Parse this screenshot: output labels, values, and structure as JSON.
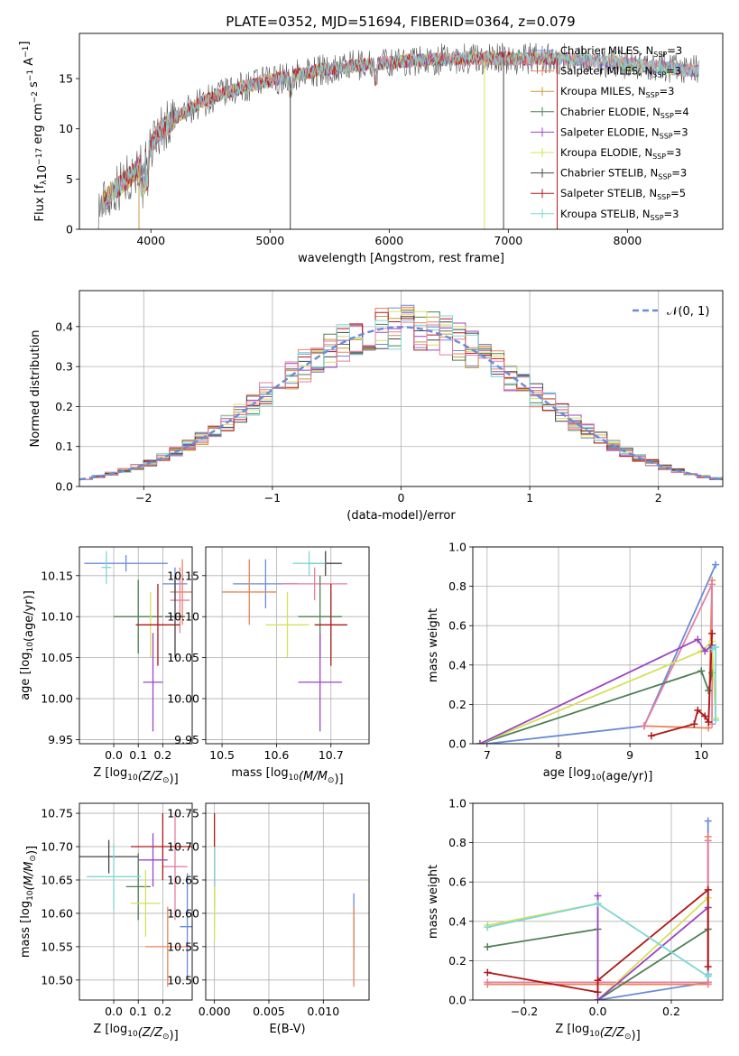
{
  "title": "PLATE=0352, MJD=51694, FIBERID=0364, z=0.079",
  "colors": {
    "c0": "#6a8bd8",
    "c1": "#e8845a",
    "c2": "#c99a3c",
    "c3": "#4f7f56",
    "c4": "#9b45c2",
    "c5": "#d6e05a",
    "c6": "#444444",
    "c7": "#b01818",
    "c8": "#7fd6d6",
    "c9": "#e57fa0"
  },
  "chart_data": [
    {
      "id": "spectrum",
      "type": "line",
      "xlabel": "wavelength [Angstrom, rest frame]",
      "ylabel": "Flux [f_λ10^-17 erg cm^-2 s^-1 A^-1]",
      "xlim": [
        3400,
        8800
      ],
      "ylim": [
        0,
        19.5
      ],
      "xticks": [
        4000,
        5000,
        6000,
        7000,
        8000
      ],
      "yticks": [
        0,
        5,
        10,
        15
      ],
      "grid": false,
      "legend_position": "top-right",
      "legend": [
        {
          "label": "Chabrier MILES, N",
          "sub": "SSP",
          "tail": "=3",
          "color": "c0"
        },
        {
          "label": "Salpeter MILES, N",
          "sub": "SSP",
          "tail": "=3",
          "color": "c1"
        },
        {
          "label": "Kroupa MILES, N",
          "sub": "SSP",
          "tail": "=3",
          "color": "c2"
        },
        {
          "label": "Chabrier ELODIE, N",
          "sub": "SSP",
          "tail": "=4",
          "color": "c3"
        },
        {
          "label": "Salpeter ELODIE, N",
          "sub": "SSP",
          "tail": "=3",
          "color": "c4"
        },
        {
          "label": "Kroupa ELODIE, N",
          "sub": "SSP",
          "tail": "=3",
          "color": "c5"
        },
        {
          "label": "Chabrier STELIB, N",
          "sub": "SSP",
          "tail": "=3",
          "color": "c6"
        },
        {
          "label": "Salpeter STELIB, N",
          "sub": "SSP",
          "tail": "=5",
          "color": "c7"
        },
        {
          "label": "Kroupa STELIB, N",
          "sub": "SSP",
          "tail": "=3",
          "color": "c8"
        }
      ],
      "continuum": {
        "x": [
          3550,
          3700,
          3850,
          3950,
          4050,
          4200,
          4400,
          4600,
          4800,
          5000,
          5200,
          5400,
          5600,
          5800,
          6000,
          6200,
          6400,
          6600,
          6800,
          7000,
          7200,
          7400,
          7600,
          7800,
          8000,
          8200,
          8400,
          8600,
          8800
        ],
        "y": [
          2,
          4,
          5.5,
          7,
          9.5,
          11,
          12.5,
          13.5,
          14.2,
          14.8,
          15.3,
          15.8,
          16.1,
          16.4,
          16.6,
          16.8,
          16.9,
          17,
          17,
          17,
          17,
          17,
          16.9,
          16.7,
          16.5,
          16.2,
          16,
          15.8,
          15.6
        ]
      }
    },
    {
      "id": "residuals",
      "type": "histogram",
      "xlabel": "(data-model)/error",
      "ylabel": "Normed distribution",
      "xlim": [
        -2.5,
        2.5
      ],
      "ylim": [
        0,
        0.49
      ],
      "xticks": [
        -2,
        -1,
        0,
        1,
        2
      ],
      "yticks": [
        0,
        0.1,
        0.2,
        0.3,
        0.4
      ],
      "grid": true,
      "legend_position": "top-right",
      "legend": [
        {
          "label": "𝒩(0, 1)",
          "color": "c0",
          "style": "dashed"
        }
      ],
      "bin_width": 0.1,
      "bin_start": -2.5
    },
    {
      "id": "age-vs-Z",
      "type": "errorbar",
      "xlabel": "Z [log10(Z/Z⊙)]",
      "ylabel": "age [log10(age/yr)]",
      "xlim": [
        -0.14,
        0.32
      ],
      "ylim": [
        9.945,
        10.185
      ],
      "xticks": [
        0.0,
        0.1,
        0.2
      ],
      "yticks": [
        9.95,
        10.0,
        10.05,
        10.1,
        10.15
      ],
      "grid": true,
      "points": [
        {
          "x": 0.05,
          "y": 10.165,
          "xerr": 0.17,
          "yerr": 0.01,
          "color": "c0"
        },
        {
          "x": 0.25,
          "y": 10.14,
          "xerr": 0.05,
          "yerr": 0.02,
          "color": "c0"
        },
        {
          "x": 0.28,
          "y": 10.13,
          "xerr": 0.05,
          "yerr": 0.04,
          "color": "c1"
        },
        {
          "x": 0.27,
          "y": 10.12,
          "xerr": 0.04,
          "yerr": 0.04,
          "color": "c9"
        },
        {
          "x": 0.1,
          "y": 10.1,
          "xerr": 0.1,
          "yerr": 0.045,
          "color": "c3"
        },
        {
          "x": 0.15,
          "y": 10.09,
          "xerr": 0.05,
          "yerr": 0.04,
          "color": "c5"
        },
        {
          "x": 0.18,
          "y": 10.09,
          "xerr": 0.09,
          "yerr": 0.05,
          "color": "c7"
        },
        {
          "x": 0.25,
          "y": 10.1,
          "xerr": 0.04,
          "yerr": 0.05,
          "color": "c6"
        },
        {
          "x": 0.16,
          "y": 10.02,
          "xerr": 0.04,
          "yerr": 0.06,
          "color": "c4"
        },
        {
          "x": -0.03,
          "y": 10.16,
          "xerr": 0.02,
          "yerr": 0.02,
          "color": "c8"
        }
      ]
    },
    {
      "id": "age-vs-mass",
      "type": "errorbar",
      "xlabel": "mass [log10(M/M⊙)]",
      "ylabel": "",
      "xlim": [
        10.47,
        10.77
      ],
      "ylim": [
        9.945,
        10.185
      ],
      "xticks": [
        10.5,
        10.6,
        10.7
      ],
      "yticks": [
        9.95,
        10.0,
        10.05,
        10.1,
        10.15
      ],
      "grid": true,
      "points": [
        {
          "x": 10.58,
          "y": 10.14,
          "xerr": 0.06,
          "yerr": 0.03,
          "color": "c0"
        },
        {
          "x": 10.55,
          "y": 10.13,
          "xerr": 0.05,
          "yerr": 0.04,
          "color": "c1"
        },
        {
          "x": 10.67,
          "y": 10.14,
          "xerr": 0.06,
          "yerr": 0.02,
          "color": "c9"
        },
        {
          "x": 10.68,
          "y": 10.1,
          "xerr": 0.04,
          "yerr": 0.05,
          "color": "c3"
        },
        {
          "x": 10.62,
          "y": 10.09,
          "xerr": 0.04,
          "yerr": 0.04,
          "color": "c5"
        },
        {
          "x": 10.7,
          "y": 10.09,
          "xerr": 0.03,
          "yerr": 0.05,
          "color": "c7"
        },
        {
          "x": 10.69,
          "y": 10.165,
          "xerr": 0.03,
          "yerr": 0.015,
          "color": "c6"
        },
        {
          "x": 10.68,
          "y": 10.02,
          "xerr": 0.04,
          "yerr": 0.06,
          "color": "c4"
        },
        {
          "x": 10.66,
          "y": 10.165,
          "xerr": 0.03,
          "yerr": 0.015,
          "color": "c8"
        }
      ]
    },
    {
      "id": "weight-vs-age",
      "type": "line",
      "xlabel": "age [log10(age/yr)]",
      "ylabel": "mass weight",
      "xlim": [
        6.8,
        10.3
      ],
      "ylim": [
        0,
        1.0
      ],
      "xticks": [
        7,
        8,
        9,
        10
      ],
      "yticks": [
        0,
        0.2,
        0.4,
        0.6,
        0.8,
        1.0
      ],
      "grid": true,
      "series": [
        {
          "color": "c0",
          "x": [
            7.0,
            9.2,
            10.2
          ],
          "y": [
            0.0,
            0.09,
            0.91
          ]
        },
        {
          "color": "c1",
          "x": [
            9.2,
            10.1,
            10.15
          ],
          "y": [
            0.09,
            0.08,
            0.83
          ]
        },
        {
          "color": "c9",
          "x": [
            9.2,
            10.15,
            10.15
          ],
          "y": [
            0.09,
            0.81,
            0.1
          ]
        },
        {
          "color": "c3",
          "x": [
            6.9,
            10.0,
            10.1,
            10.15
          ],
          "y": [
            0.0,
            0.37,
            0.27,
            0.36
          ]
        },
        {
          "color": "c5",
          "x": [
            6.9,
            10.0,
            10.15,
            10.2
          ],
          "y": [
            0.0,
            0.47,
            0.52,
            0.13
          ]
        },
        {
          "color": "c4",
          "x": [
            6.9,
            9.95,
            10.05,
            10.15
          ],
          "y": [
            0.0,
            0.53,
            0.47,
            0.5
          ]
        },
        {
          "color": "c7",
          "x": [
            9.3,
            9.9,
            9.95,
            10.05,
            10.1,
            10.15
          ],
          "y": [
            0.04,
            0.1,
            0.17,
            0.14,
            0.11,
            0.56
          ]
        },
        {
          "color": "c8",
          "x": [
            10.15,
            10.2,
            10.2
          ],
          "y": [
            0.48,
            0.49,
            0.12
          ]
        }
      ]
    },
    {
      "id": "mass-vs-Z",
      "type": "errorbar",
      "xlabel": "Z [log10(Z/Z⊙)]",
      "ylabel": "mass [log10(M/M⊙)]",
      "xlim": [
        -0.14,
        0.32
      ],
      "ylim": [
        10.47,
        10.765
      ],
      "xticks": [
        0.0,
        0.1,
        0.2
      ],
      "yticks": [
        10.5,
        10.55,
        10.6,
        10.65,
        10.7,
        10.75
      ],
      "grid": true,
      "points": [
        {
          "x": 0.3,
          "y": 10.58,
          "xerr": 0.03,
          "yerr": 0.08,
          "color": "c0"
        },
        {
          "x": 0.22,
          "y": 10.55,
          "xerr": 0.09,
          "yerr": 0.06,
          "color": "c1"
        },
        {
          "x": 0.25,
          "y": 10.67,
          "xerr": 0.05,
          "yerr": 0.08,
          "color": "c9"
        },
        {
          "x": 0.1,
          "y": 10.64,
          "xerr": 0.05,
          "yerr": 0.05,
          "color": "c3"
        },
        {
          "x": 0.13,
          "y": 10.615,
          "xerr": 0.06,
          "yerr": 0.05,
          "color": "c5"
        },
        {
          "x": 0.2,
          "y": 10.7,
          "xerr": 0.13,
          "yerr": 0.05,
          "color": "c7"
        },
        {
          "x": -0.02,
          "y": 10.685,
          "xerr": 0.12,
          "yerr": 0.025,
          "color": "c6"
        },
        {
          "x": 0.16,
          "y": 10.68,
          "xerr": 0.06,
          "yerr": 0.04,
          "color": "c4"
        },
        {
          "x": 0.0,
          "y": 10.655,
          "xerr": 0.11,
          "yerr": 0.05,
          "color": "c8"
        }
      ]
    },
    {
      "id": "mass-vs-ebv",
      "type": "errorbar",
      "xlabel": "E(B-V)",
      "ylabel": "",
      "xlim": [
        -0.0008,
        0.0142
      ],
      "ylim": [
        10.47,
        10.765
      ],
      "xticks": [
        0.0,
        0.005,
        0.01
      ],
      "xticklabels": [
        "0.000",
        "0.005",
        "0.010"
      ],
      "yticks": [
        10.5,
        10.55,
        10.6,
        10.65,
        10.7,
        10.75
      ],
      "grid": true,
      "points": [
        {
          "x": 0.0,
          "y": 10.68,
          "xerr": 0,
          "yerr": 0.07,
          "color": "c7"
        },
        {
          "x": 0.0,
          "y": 10.64,
          "xerr": 0,
          "yerr": 0.06,
          "color": "c8"
        },
        {
          "x": 0.0,
          "y": 10.6,
          "xerr": 0,
          "yerr": 0.04,
          "color": "c5"
        },
        {
          "x": 0.0128,
          "y": 10.58,
          "xerr": 0,
          "yerr": 0.05,
          "color": "c0"
        },
        {
          "x": 0.0128,
          "y": 10.55,
          "xerr": 0,
          "yerr": 0.06,
          "color": "c1"
        }
      ]
    },
    {
      "id": "weight-vs-Z",
      "type": "line",
      "xlabel": "Z [log10(Z/Z⊙)]",
      "ylabel": "mass weight",
      "xlim": [
        -0.34,
        0.34
      ],
      "ylim": [
        0,
        1.0
      ],
      "xticks": [
        -0.2,
        0.0,
        0.2
      ],
      "xticklabels": [
        "−0.2",
        "0.0",
        "0.2"
      ],
      "yticks": [
        0,
        0.2,
        0.4,
        0.6,
        0.8,
        1.0
      ],
      "grid": true,
      "series": [
        {
          "color": "c0",
          "x": [
            0.0,
            0.3,
            0.3
          ],
          "y": [
            0.0,
            0.09,
            0.91
          ]
        },
        {
          "color": "c1",
          "x": [
            -0.3,
            0.0,
            0.3,
            0.3
          ],
          "y": [
            0.08,
            0.08,
            0.08,
            0.83
          ]
        },
        {
          "color": "c9",
          "x": [
            -0.3,
            0.0,
            0.3,
            0.3
          ],
          "y": [
            0.09,
            0.09,
            0.09,
            0.81
          ]
        },
        {
          "color": "c3",
          "x": [
            -0.3,
            0.0,
            0.0,
            0.3,
            0.3
          ],
          "y": [
            0.27,
            0.36,
            0.0,
            0.36,
            0.13
          ]
        },
        {
          "color": "c5",
          "x": [
            -0.3,
            0.0,
            0.0,
            0.3,
            0.3
          ],
          "y": [
            0.38,
            0.49,
            0.0,
            0.52,
            0.13
          ]
        },
        {
          "color": "c4",
          "x": [
            0.0,
            0.0,
            0.3,
            0.3
          ],
          "y": [
            0.53,
            0.0,
            0.47,
            0.13
          ]
        },
        {
          "color": "c7",
          "x": [
            -0.3,
            0.0,
            0.0,
            0.3,
            0.3
          ],
          "y": [
            0.14,
            0.04,
            0.1,
            0.56,
            0.17
          ]
        },
        {
          "color": "c8",
          "x": [
            -0.3,
            0.0,
            0.3,
            0.3
          ],
          "y": [
            0.37,
            0.49,
            0.12,
            0.13
          ]
        }
      ]
    }
  ]
}
